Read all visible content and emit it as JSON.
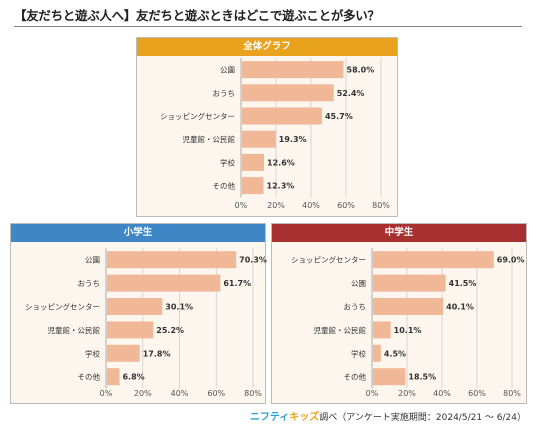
{
  "title": "【友だちと遊ぶ人へ】友だちと遊ぶときはどこで遊ぶことが多い？",
  "footer": {
    "brand_part1": "ニフティ",
    "brand_part2": "キッズ",
    "text": "調べ（アンケート実施期間：2024/5/21 ～ 6/24）"
  },
  "colors": {
    "bar": "#f1b897",
    "panel_bg": "#fdf6ee",
    "header_all": "#e8a21e",
    "header_elem": "#3f86c6",
    "header_middle": "#a83030"
  },
  "chart_data": [
    {
      "type": "bar",
      "orientation": "horizontal",
      "title": "全体グラフ",
      "categories": [
        "公園",
        "おうち",
        "ショッピングセンター",
        "児童館・公民館",
        "学校",
        "その他"
      ],
      "values": [
        58.0,
        52.4,
        45.7,
        19.3,
        12.6,
        12.3
      ],
      "value_labels": [
        "58.0%",
        "52.4%",
        "45.7%",
        "19.3%",
        "12.6%",
        "12.3%"
      ],
      "xlim": [
        0,
        80
      ],
      "ticks": [
        "0%",
        "20%",
        "40%",
        "60%",
        "80%"
      ],
      "grid": true
    },
    {
      "type": "bar",
      "orientation": "horizontal",
      "title": "小学生",
      "categories": [
        "公園",
        "おうち",
        "ショッピングセンター",
        "児童館・公民館",
        "学校",
        "その他"
      ],
      "values": [
        70.3,
        61.7,
        30.1,
        25.2,
        17.8,
        6.8
      ],
      "value_labels": [
        "70.3%",
        "61.7%",
        "30.1%",
        "25.2%",
        "17.8%",
        "6.8%"
      ],
      "xlim": [
        0,
        80
      ],
      "ticks": [
        "0%",
        "20%",
        "40%",
        "60%",
        "80%"
      ],
      "grid": true
    },
    {
      "type": "bar",
      "orientation": "horizontal",
      "title": "中学生",
      "categories": [
        "ショッピングセンター",
        "公園",
        "おうち",
        "児童館・公民館",
        "学校",
        "その他"
      ],
      "values": [
        69.0,
        41.5,
        40.1,
        10.1,
        4.5,
        18.5
      ],
      "value_labels": [
        "69.0%",
        "41.5%",
        "40.1%",
        "10.1%",
        "4.5%",
        "18.5%"
      ],
      "xlim": [
        0,
        80
      ],
      "ticks": [
        "0%",
        "20%",
        "40%",
        "60%",
        "80%"
      ],
      "grid": true
    }
  ]
}
